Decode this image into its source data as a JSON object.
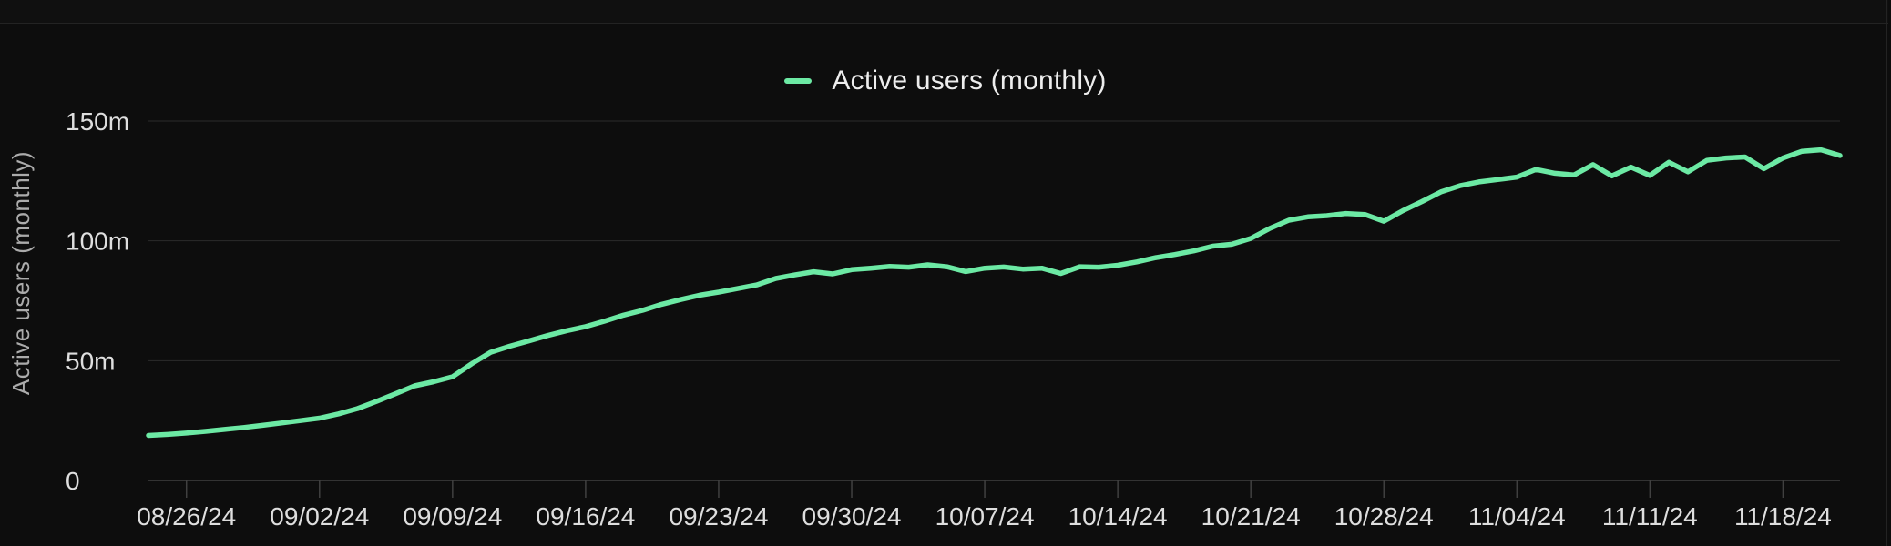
{
  "page": {
    "background": "#0D0D0D"
  },
  "legend": {
    "label": "Active users (monthly)"
  },
  "colors": {
    "background": "#0D0D0D",
    "topbar": "#101010",
    "divider": "#232323",
    "gridline": "#2B2B2B",
    "axis_line": "#404040",
    "tick_label": "#DEDEDE",
    "axis_title": "#ABABAB",
    "legend_text": "#EDEDED",
    "series_line": "#6CE9A4"
  },
  "chart_data": {
    "type": "line",
    "title": "",
    "xlabel": "",
    "ylabel": "Active users (monthly)",
    "unit": "millions of users",
    "grid": "horizontal",
    "legend_position": "top-center",
    "ylim": [
      0,
      160
    ],
    "y_ticks": [
      {
        "label": "0",
        "value": 0
      },
      {
        "label": "50m",
        "value": 50
      },
      {
        "label": "100m",
        "value": 100
      },
      {
        "label": "150m",
        "value": 150
      }
    ],
    "x_tick_labels": [
      "08/26/24",
      "09/02/24",
      "09/09/24",
      "09/16/24",
      "09/23/24",
      "09/30/24",
      "10/07/24",
      "10/14/24",
      "10/21/24",
      "10/28/24",
      "11/04/24",
      "11/11/24",
      "11/18/24"
    ],
    "series": [
      {
        "name": "Active users (monthly)",
        "color": "#6CE9A4",
        "x": [
          "08/24/24",
          "08/25/24",
          "08/26/24",
          "08/27/24",
          "08/28/24",
          "08/29/24",
          "08/30/24",
          "08/31/24",
          "09/01/24",
          "09/02/24",
          "09/03/24",
          "09/04/24",
          "09/05/24",
          "09/06/24",
          "09/07/24",
          "09/08/24",
          "09/09/24",
          "09/10/24",
          "09/11/24",
          "09/12/24",
          "09/13/24",
          "09/14/24",
          "09/15/24",
          "09/16/24",
          "09/17/24",
          "09/18/24",
          "09/19/24",
          "09/20/24",
          "09/21/24",
          "09/22/24",
          "09/23/24",
          "09/24/24",
          "09/25/24",
          "09/26/24",
          "09/27/24",
          "09/28/24",
          "09/29/24",
          "09/30/24",
          "10/01/24",
          "10/02/24",
          "10/03/24",
          "10/04/24",
          "10/05/24",
          "10/06/24",
          "10/07/24",
          "10/08/24",
          "10/09/24",
          "10/10/24",
          "10/11/24",
          "10/12/24",
          "10/13/24",
          "10/14/24",
          "10/15/24",
          "10/16/24",
          "10/17/24",
          "10/18/24",
          "10/19/24",
          "10/20/24",
          "10/21/24",
          "10/22/24",
          "10/23/24",
          "10/24/24",
          "10/25/24",
          "10/26/24",
          "10/27/24",
          "10/28/24",
          "10/29/24",
          "10/30/24",
          "10/31/24",
          "11/01/24",
          "11/02/24",
          "11/03/24",
          "11/04/24",
          "11/05/24",
          "11/06/24",
          "11/07/24",
          "11/08/24",
          "11/09/24",
          "11/10/24",
          "11/11/24",
          "11/12/24",
          "11/13/24",
          "11/14/24",
          "11/15/24",
          "11/16/24",
          "11/17/24",
          "11/18/24",
          "11/19/24",
          "11/20/24",
          "11/21/24"
        ],
        "values": [
          18.8,
          19.2,
          19.8,
          20.5,
          21.3,
          22.1,
          23.0,
          24.0,
          25.0,
          26.0,
          27.8,
          30.0,
          33.0,
          36.2,
          39.5,
          41.2,
          43.3,
          48.7,
          53.5,
          56.0,
          58.2,
          60.5,
          62.5,
          64.2,
          66.5,
          69.0,
          71.0,
          73.5,
          75.5,
          77.3,
          78.6,
          80.1,
          81.6,
          84.3,
          85.8,
          87.1,
          86.2,
          88.0,
          88.6,
          89.3,
          89.0,
          90.0,
          89.2,
          87.2,
          88.6,
          89.1,
          88.2,
          88.6,
          86.4,
          89.2,
          89.0,
          89.8,
          91.2,
          93.0,
          94.3,
          95.8,
          97.8,
          98.6,
          101.0,
          105.2,
          108.6,
          110.0,
          110.5,
          111.4,
          111.0,
          108.2,
          112.6,
          116.4,
          120.4,
          123.0,
          124.6,
          125.6,
          126.6,
          129.8,
          128.2,
          127.5,
          131.8,
          127.1,
          130.8,
          127.3,
          132.8,
          128.8,
          133.6,
          134.6,
          135.0,
          130.1,
          134.6,
          137.4,
          138.0,
          135.6
        ]
      }
    ]
  }
}
